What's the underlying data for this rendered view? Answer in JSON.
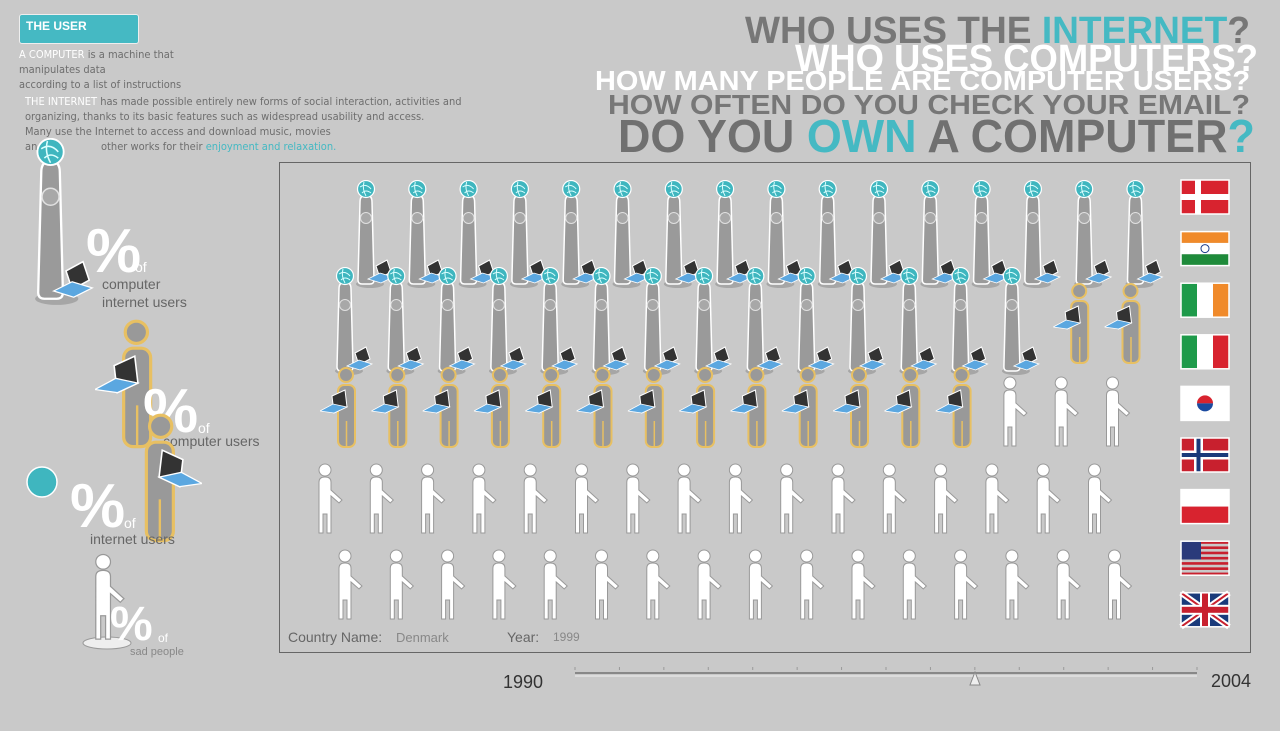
{
  "sidebar": {
    "tab": "THE USER",
    "computer_term": "A COMPUTER",
    "computer_def": [
      " is a machine that",
      "manipulates data",
      "according to a list of instructions"
    ],
    "internet_term": "THE INTERNET",
    "internet_def": [
      " has made possible entirely new forms of social interaction, activities and",
      "organizing, thanks to its basic features such as widespread usability and access.",
      "Many use the Internet to access and download music, movies"
    ],
    "last_line_start": "and",
    "last_line_mid": "other works for their",
    "last_line_link": "enjoyment and relaxation."
  },
  "legend": [
    {
      "symbol": "%",
      "of": "of",
      "label": [
        "computer",
        "internet users"
      ]
    },
    {
      "symbol": "%",
      "of": "of",
      "label": [
        "computer users"
      ]
    },
    {
      "symbol": "%",
      "of": "of",
      "label": [
        "internet users"
      ]
    },
    {
      "symbol": "%",
      "of": "of",
      "label": [
        "sad people"
      ]
    }
  ],
  "headlines": [
    [
      "WHO USES THE ",
      "INTERNET",
      "?"
    ],
    [
      "WHO USES COMPUTERS?"
    ],
    [
      "HOW MANY PEOPLE ARE COMPUTER USERS?"
    ],
    [
      "HOW OFTEN DO YOU CHECK YOUR EMAIL?"
    ],
    [
      "DO YOU ",
      "OWN",
      " A COMPUTER",
      "?"
    ]
  ],
  "viewer": {
    "country_label": "Country Name:",
    "country": "Denmark",
    "year_label": "Year:",
    "year": "1999"
  },
  "slider": {
    "start": "1990",
    "end": "2004"
  }
}
